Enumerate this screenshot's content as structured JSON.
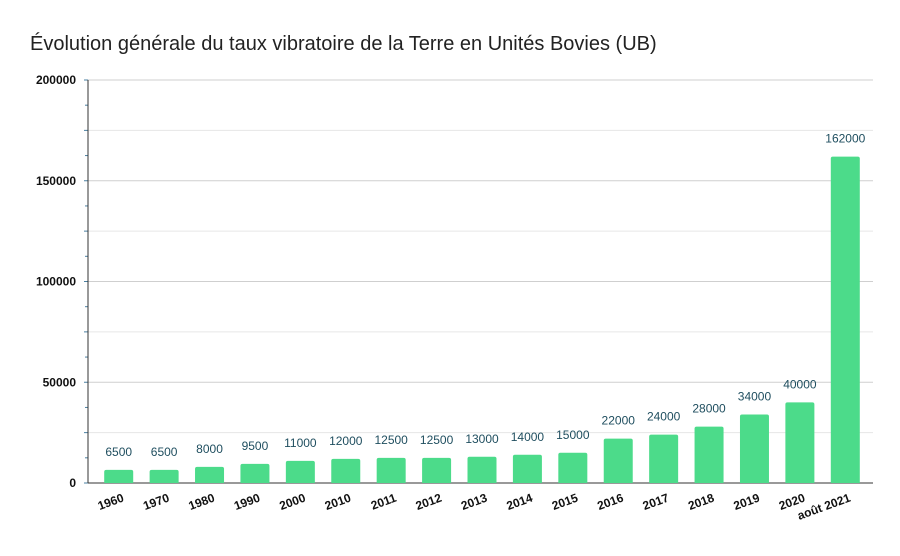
{
  "chart_data": {
    "type": "bar",
    "title": "Évolution générale du taux vibratoire de la Terre en Unités Bovies (UB)",
    "categories": [
      "1960",
      "1970",
      "1980",
      "1990",
      "2000",
      "2010",
      "2011",
      "2012",
      "2013",
      "2014",
      "2015",
      "2016",
      "2017",
      "2018",
      "2019",
      "2020",
      "août 2021"
    ],
    "values": [
      6500,
      6500,
      8000,
      9500,
      11000,
      12000,
      12500,
      12500,
      13000,
      14000,
      15000,
      22000,
      24000,
      28000,
      34000,
      40000,
      162000
    ],
    "ylim": [
      0,
      200000
    ],
    "yticks": [
      0,
      50000,
      100000,
      150000,
      200000
    ],
    "ytick_labels": [
      "0",
      "50000",
      "100000",
      "150000",
      "200000"
    ],
    "grid": true,
    "bar_color": "#4cdb8a",
    "data_label_color": "#1f4e5f",
    "legend": "none"
  }
}
